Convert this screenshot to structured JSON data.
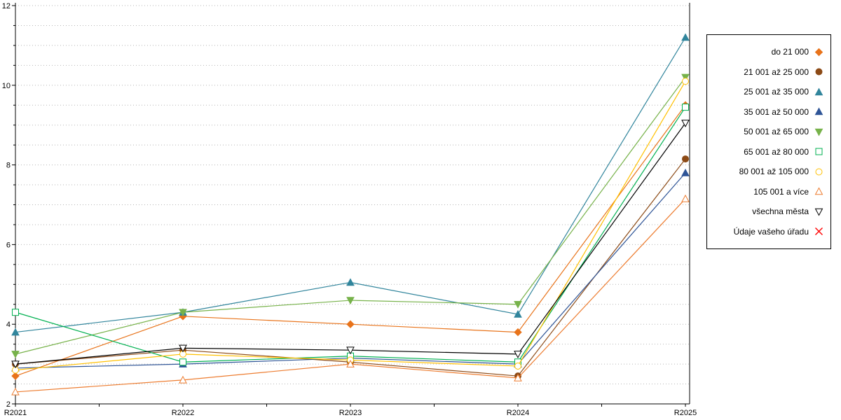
{
  "chart_data": {
    "type": "line",
    "title": "",
    "xlabel": "",
    "ylabel": "",
    "x_categories": [
      "R2021",
      "R2022",
      "R2023",
      "R2024",
      "R2025"
    ],
    "ylim": [
      2,
      12
    ],
    "y_ticks": [
      2,
      4,
      6,
      8,
      10,
      12
    ],
    "grid": {
      "horizontal_step": 0.5,
      "style": "dotted",
      "color": "#b5b5b5"
    },
    "legend_position": "right",
    "series": [
      {
        "name": "do 21 000",
        "color": "#e8731a",
        "marker": "diamond",
        "fill": "solid",
        "values": [
          2.7,
          4.2,
          4.0,
          3.8,
          9.5
        ]
      },
      {
        "name": "21 001 až 25 000",
        "color": "#8c4a16",
        "marker": "circle",
        "fill": "solid",
        "values": [
          3.0,
          3.35,
          3.05,
          2.7,
          8.15
        ]
      },
      {
        "name": "25 001 až 35 000",
        "color": "#31859c",
        "marker": "triangle-up",
        "fill": "solid",
        "values": [
          3.8,
          4.3,
          5.05,
          4.25,
          11.2
        ]
      },
      {
        "name": "35 001 až 50 000",
        "color": "#2f5597",
        "marker": "triangle-up",
        "fill": "solid",
        "values": [
          2.9,
          3.0,
          3.15,
          3.0,
          7.8
        ]
      },
      {
        "name": "50 001 až 65 000",
        "color": "#77b24a",
        "marker": "triangle-down",
        "fill": "solid",
        "values": [
          3.25,
          4.3,
          4.6,
          4.5,
          10.2
        ]
      },
      {
        "name": "65 001 až 80 000",
        "color": "#00b050",
        "marker": "square",
        "fill": "open",
        "values": [
          4.3,
          3.05,
          3.2,
          3.05,
          9.45
        ]
      },
      {
        "name": "80 001 až 105 000",
        "color": "#ffc000",
        "marker": "circle",
        "fill": "open",
        "values": [
          2.85,
          3.25,
          3.1,
          2.95,
          10.1
        ]
      },
      {
        "name": "105 001 a více",
        "color": "#ed7d31",
        "marker": "triangle-up",
        "fill": "open",
        "values": [
          2.3,
          2.6,
          3.0,
          2.65,
          7.15
        ]
      },
      {
        "name": "všechna města",
        "color": "#000000",
        "marker": "triangle-down",
        "fill": "open",
        "values": [
          3.0,
          3.4,
          3.35,
          3.25,
          9.05
        ]
      },
      {
        "name": "Údaje vašeho úřadu",
        "color": "#ff0000",
        "marker": "x",
        "fill": "open",
        "values": [
          null,
          null,
          null,
          null,
          null
        ]
      }
    ]
  }
}
